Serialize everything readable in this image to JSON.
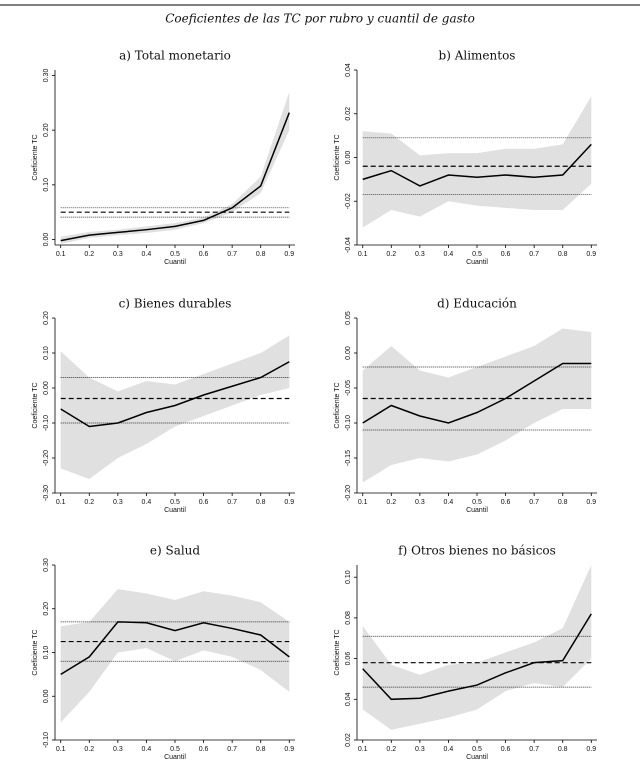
{
  "title": "Coeficientes de las TC por rubro y cuantil de gasto",
  "chart_data": [
    {
      "type": "line",
      "title": "a)  Total monetario",
      "xlabel": "Cuantil",
      "ylabel": "Coeficiente TC",
      "x": [
        0.1,
        0.2,
        0.3,
        0.4,
        0.5,
        0.6,
        0.7,
        0.8,
        0.9
      ],
      "xlim": [
        0.08,
        0.92
      ],
      "xticks": [
        0.1,
        0.2,
        0.3,
        0.4,
        0.5,
        0.6,
        0.7,
        0.8,
        0.9
      ],
      "ylim": [
        -0.01,
        0.31
      ],
      "yticks": [
        {
          "value": 0,
          "label": "0.00"
        },
        {
          "value": 0.1,
          "label": "0.10"
        },
        {
          "value": 0.2,
          "label": "0.20"
        },
        {
          "value": 0.3,
          "label": "0.30"
        }
      ],
      "band": {
        "color": "#e0e0e0",
        "lower": [
          -0.008,
          0.003,
          0.008,
          0.012,
          0.018,
          0.03,
          0.05,
          0.085,
          0.2
        ],
        "upper": [
          0.005,
          0.014,
          0.018,
          0.024,
          0.03,
          0.04,
          0.065,
          0.115,
          0.27
        ]
      },
      "series": [
        {
          "color": "#000000",
          "values": [
            -0.002,
            0.008,
            0.013,
            0.018,
            0.024,
            0.035,
            0.058,
            0.098,
            0.232
          ]
        }
      ],
      "reference_lines": [
        {
          "value": 0.05,
          "style": "dashed"
        },
        {
          "value": 0.058,
          "style": "dotted"
        },
        {
          "value": 0.041,
          "style": "dotted"
        }
      ]
    },
    {
      "type": "line",
      "title": "b)  Alimentos",
      "xlabel": "Cuantil",
      "ylabel": "Coeficiente TC",
      "x": [
        0.1,
        0.2,
        0.3,
        0.4,
        0.5,
        0.6,
        0.7,
        0.8,
        0.9
      ],
      "xlim": [
        0.08,
        0.92
      ],
      "xticks": [
        0.1,
        0.2,
        0.3,
        0.4,
        0.5,
        0.6,
        0.7,
        0.8,
        0.9
      ],
      "ylim": [
        -0.04,
        0.04
      ],
      "yticks": [
        {
          "value": -0.04,
          "label": "-0.04"
        },
        {
          "value": -0.02,
          "label": "-0.02"
        },
        {
          "value": 0,
          "label": "0.00"
        },
        {
          "value": 0.02,
          "label": "0.02"
        },
        {
          "value": 0.04,
          "label": "0.04"
        }
      ],
      "band": {
        "color": "#e0e0e0",
        "lower": [
          -0.032,
          -0.024,
          -0.027,
          -0.02,
          -0.022,
          -0.023,
          -0.024,
          -0.024,
          -0.012
        ],
        "upper": [
          0.012,
          0.011,
          0.001,
          0.002,
          0.002,
          0.004,
          0.004,
          0.006,
          0.028
        ]
      },
      "series": [
        {
          "color": "#000000",
          "values": [
            -0.01,
            -0.006,
            -0.013,
            -0.008,
            -0.009,
            -0.008,
            -0.009,
            -0.008,
            0.006
          ]
        }
      ],
      "reference_lines": [
        {
          "value": -0.004,
          "style": "dashed"
        },
        {
          "value": 0.009,
          "style": "dotted"
        },
        {
          "value": -0.017,
          "style": "dotted"
        }
      ]
    },
    {
      "type": "line",
      "title": "c)  Bienes durables",
      "xlabel": "Cuantil",
      "ylabel": "Coeficiente TC",
      "x": [
        0.1,
        0.2,
        0.3,
        0.4,
        0.5,
        0.6,
        0.7,
        0.8,
        0.9
      ],
      "xlim": [
        0.08,
        0.92
      ],
      "xticks": [
        0.1,
        0.2,
        0.3,
        0.4,
        0.5,
        0.6,
        0.7,
        0.8,
        0.9
      ],
      "ylim": [
        -0.3,
        0.2
      ],
      "yticks": [
        {
          "value": -0.3,
          "label": "-0.30"
        },
        {
          "value": -0.2,
          "label": "-0.20"
        },
        {
          "value": -0.1,
          "label": "-0.10"
        },
        {
          "value": 0,
          "label": "0.00"
        },
        {
          "value": 0.1,
          "label": "0.10"
        },
        {
          "value": 0.2,
          "label": "0.20"
        }
      ],
      "band": {
        "color": "#e0e0e0",
        "lower": [
          -0.23,
          -0.26,
          -0.2,
          -0.16,
          -0.11,
          -0.08,
          -0.05,
          -0.02,
          0.0
        ],
        "upper": [
          0.105,
          0.03,
          -0.01,
          0.02,
          0.01,
          0.04,
          0.07,
          0.1,
          0.15
        ]
      },
      "series": [
        {
          "color": "#000000",
          "values": [
            -0.06,
            -0.11,
            -0.1,
            -0.07,
            -0.05,
            -0.02,
            0.005,
            0.03,
            0.075
          ]
        }
      ],
      "reference_lines": [
        {
          "value": -0.03,
          "style": "dashed"
        },
        {
          "value": 0.03,
          "style": "dotted"
        },
        {
          "value": -0.1,
          "style": "dotted"
        }
      ]
    },
    {
      "type": "line",
      "title": "d)  Educación",
      "xlabel": "Cuantil",
      "ylabel": "Coeficiente TC",
      "x": [
        0.1,
        0.2,
        0.3,
        0.4,
        0.5,
        0.6,
        0.7,
        0.8,
        0.9
      ],
      "xlim": [
        0.08,
        0.92
      ],
      "xticks": [
        0.1,
        0.2,
        0.3,
        0.4,
        0.5,
        0.6,
        0.7,
        0.8,
        0.9
      ],
      "ylim": [
        -0.2,
        0.05
      ],
      "yticks": [
        {
          "value": -0.2,
          "label": "-0.20"
        },
        {
          "value": -0.15,
          "label": "-0.15"
        },
        {
          "value": -0.1,
          "label": "-0.10"
        },
        {
          "value": -0.05,
          "label": "-0.05"
        },
        {
          "value": 0,
          "label": "0.00"
        },
        {
          "value": 0.05,
          "label": "0.05"
        }
      ],
      "band": {
        "color": "#e0e0e0",
        "lower": [
          -0.185,
          -0.16,
          -0.15,
          -0.155,
          -0.145,
          -0.125,
          -0.1,
          -0.08,
          -0.08
        ],
        "upper": [
          -0.025,
          0.01,
          -0.025,
          -0.035,
          -0.02,
          -0.005,
          0.01,
          0.035,
          0.03
        ]
      },
      "series": [
        {
          "color": "#000000",
          "values": [
            -0.1,
            -0.075,
            -0.09,
            -0.1,
            -0.085,
            -0.065,
            -0.04,
            -0.015,
            -0.015
          ]
        }
      ],
      "reference_lines": [
        {
          "value": -0.065,
          "style": "dashed"
        },
        {
          "value": -0.02,
          "style": "dotted"
        },
        {
          "value": -0.11,
          "style": "dotted"
        }
      ]
    },
    {
      "type": "line",
      "title": "e)  Salud",
      "xlabel": "Cuantil",
      "ylabel": "Coeficiente TC",
      "x": [
        0.1,
        0.2,
        0.3,
        0.4,
        0.5,
        0.6,
        0.7,
        0.8,
        0.9
      ],
      "xlim": [
        0.08,
        0.92
      ],
      "xticks": [
        0.1,
        0.2,
        0.3,
        0.4,
        0.5,
        0.6,
        0.7,
        0.8,
        0.9
      ],
      "ylim": [
        -0.1,
        0.3
      ],
      "yticks": [
        {
          "value": -0.1,
          "label": "-0.10"
        },
        {
          "value": 0,
          "label": "0.00"
        },
        {
          "value": 0.1,
          "label": "0.10"
        },
        {
          "value": 0.2,
          "label": "0.20"
        },
        {
          "value": 0.3,
          "label": "0.30"
        }
      ],
      "band": {
        "color": "#e0e0e0",
        "lower": [
          -0.06,
          0.01,
          0.1,
          0.11,
          0.08,
          0.105,
          0.09,
          0.06,
          0.01
        ],
        "upper": [
          0.16,
          0.17,
          0.245,
          0.235,
          0.22,
          0.24,
          0.23,
          0.215,
          0.17
        ]
      },
      "series": [
        {
          "color": "#000000",
          "values": [
            0.05,
            0.09,
            0.17,
            0.168,
            0.15,
            0.168,
            0.155,
            0.14,
            0.09
          ]
        }
      ],
      "reference_lines": [
        {
          "value": 0.125,
          "style": "dashed"
        },
        {
          "value": 0.17,
          "style": "dotted"
        },
        {
          "value": 0.08,
          "style": "dotted"
        }
      ]
    },
    {
      "type": "line",
      "title": "f)  Otros bienes no básicos",
      "xlabel": "Cuantil",
      "ylabel": "Coeficiente TC",
      "x": [
        0.1,
        0.2,
        0.3,
        0.4,
        0.5,
        0.6,
        0.7,
        0.8,
        0.9
      ],
      "xlim": [
        0.08,
        0.92
      ],
      "xticks": [
        0.1,
        0.2,
        0.3,
        0.4,
        0.5,
        0.6,
        0.7,
        0.8,
        0.9
      ],
      "ylim": [
        0.02,
        0.106
      ],
      "yticks": [
        {
          "value": 0.02,
          "label": "0.02"
        },
        {
          "value": 0.04,
          "label": "0.04"
        },
        {
          "value": 0.06,
          "label": "0.06"
        },
        {
          "value": 0.08,
          "label": "0.08"
        },
        {
          "value": 0.1,
          "label": "0.10"
        }
      ],
      "band": {
        "color": "#e0e0e0",
        "lower": [
          0.035,
          0.025,
          0.028,
          0.031,
          0.035,
          0.044,
          0.048,
          0.046,
          0.06
        ],
        "upper": [
          0.076,
          0.057,
          0.052,
          0.057,
          0.058,
          0.063,
          0.068,
          0.075,
          0.106
        ]
      },
      "series": [
        {
          "color": "#000000",
          "values": [
            0.055,
            0.04,
            0.0405,
            0.044,
            0.047,
            0.053,
            0.058,
            0.059,
            0.082
          ]
        }
      ],
      "reference_lines": [
        {
          "value": 0.058,
          "style": "dashed"
        },
        {
          "value": 0.071,
          "style": "dotted"
        },
        {
          "value": 0.046,
          "style": "dotted"
        }
      ]
    }
  ]
}
